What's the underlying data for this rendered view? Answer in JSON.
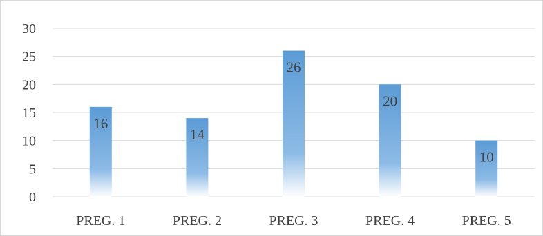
{
  "chart_data": {
    "type": "bar",
    "categories": [
      "PREG. 1",
      "PREG. 2",
      "PREG. 3",
      "PREG. 4",
      "PREG. 5"
    ],
    "values": [
      16,
      14,
      26,
      20,
      10
    ],
    "ylim": [
      0,
      30
    ],
    "yticks": [
      0,
      5,
      10,
      15,
      20,
      25,
      30
    ],
    "grid": true,
    "data_labels": true,
    "title": "",
    "xlabel": "",
    "ylabel": "",
    "colors": {
      "bar_top": "#5b9bd5",
      "bar_bottom": "#ffffff",
      "grid": "#d9d9d9",
      "text": "#404040"
    }
  }
}
